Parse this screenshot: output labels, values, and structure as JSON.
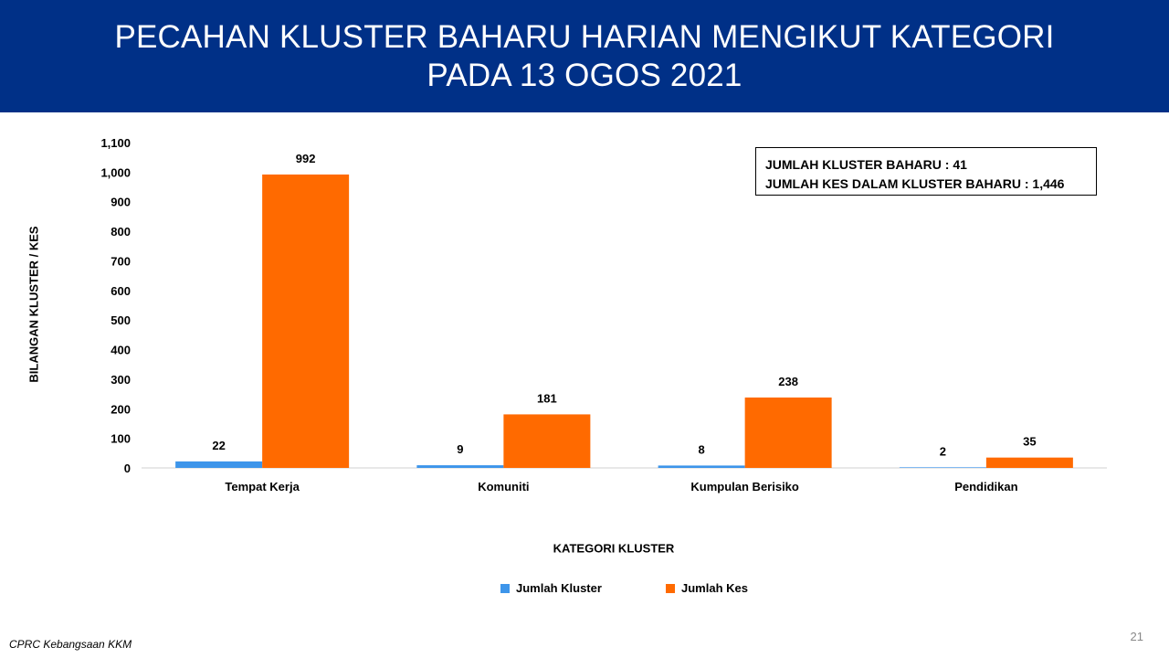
{
  "header": {
    "title_line1": "PECAHAN KLUSTER BAHARU HARIAN MENGIKUT KATEGORI",
    "title_line2": "PADA 13 OGOS 2021"
  },
  "summary": {
    "line1": "JUMLAH KLUSTER BAHARU : 41",
    "line2": "JUMLAH KES DALAM KLUSTER BAHARU : 1,446"
  },
  "footer": {
    "source": "CPRC Kebangsaan KKM",
    "page_number": "21"
  },
  "colors": {
    "header_bg": "#003087",
    "series_kluster": "#3d95ea",
    "series_kes": "#ff6a00"
  },
  "chart_data": {
    "type": "bar",
    "title": "PECAHAN KLUSTER BAHARU HARIAN MENGIKUT KATEGORI PADA 13 OGOS 2021",
    "xlabel": "KATEGORI KLUSTER",
    "ylabel": "BILANGAN KLUSTER / KES",
    "ylim": [
      0,
      1100
    ],
    "yticks": [
      "0",
      "100",
      "200",
      "300",
      "400",
      "500",
      "600",
      "700",
      "800",
      "900",
      "1,000",
      "1,100"
    ],
    "categories": [
      "Tempat Kerja",
      "Komuniti",
      "Kumpulan Berisiko",
      "Pendidikan"
    ],
    "series": [
      {
        "name": "Jumlah Kluster",
        "values": [
          22,
          9,
          8,
          2
        ]
      },
      {
        "name": "Jumlah Kes",
        "values": [
          992,
          181,
          238,
          35
        ]
      }
    ],
    "grid": false,
    "legend": "bottom"
  }
}
